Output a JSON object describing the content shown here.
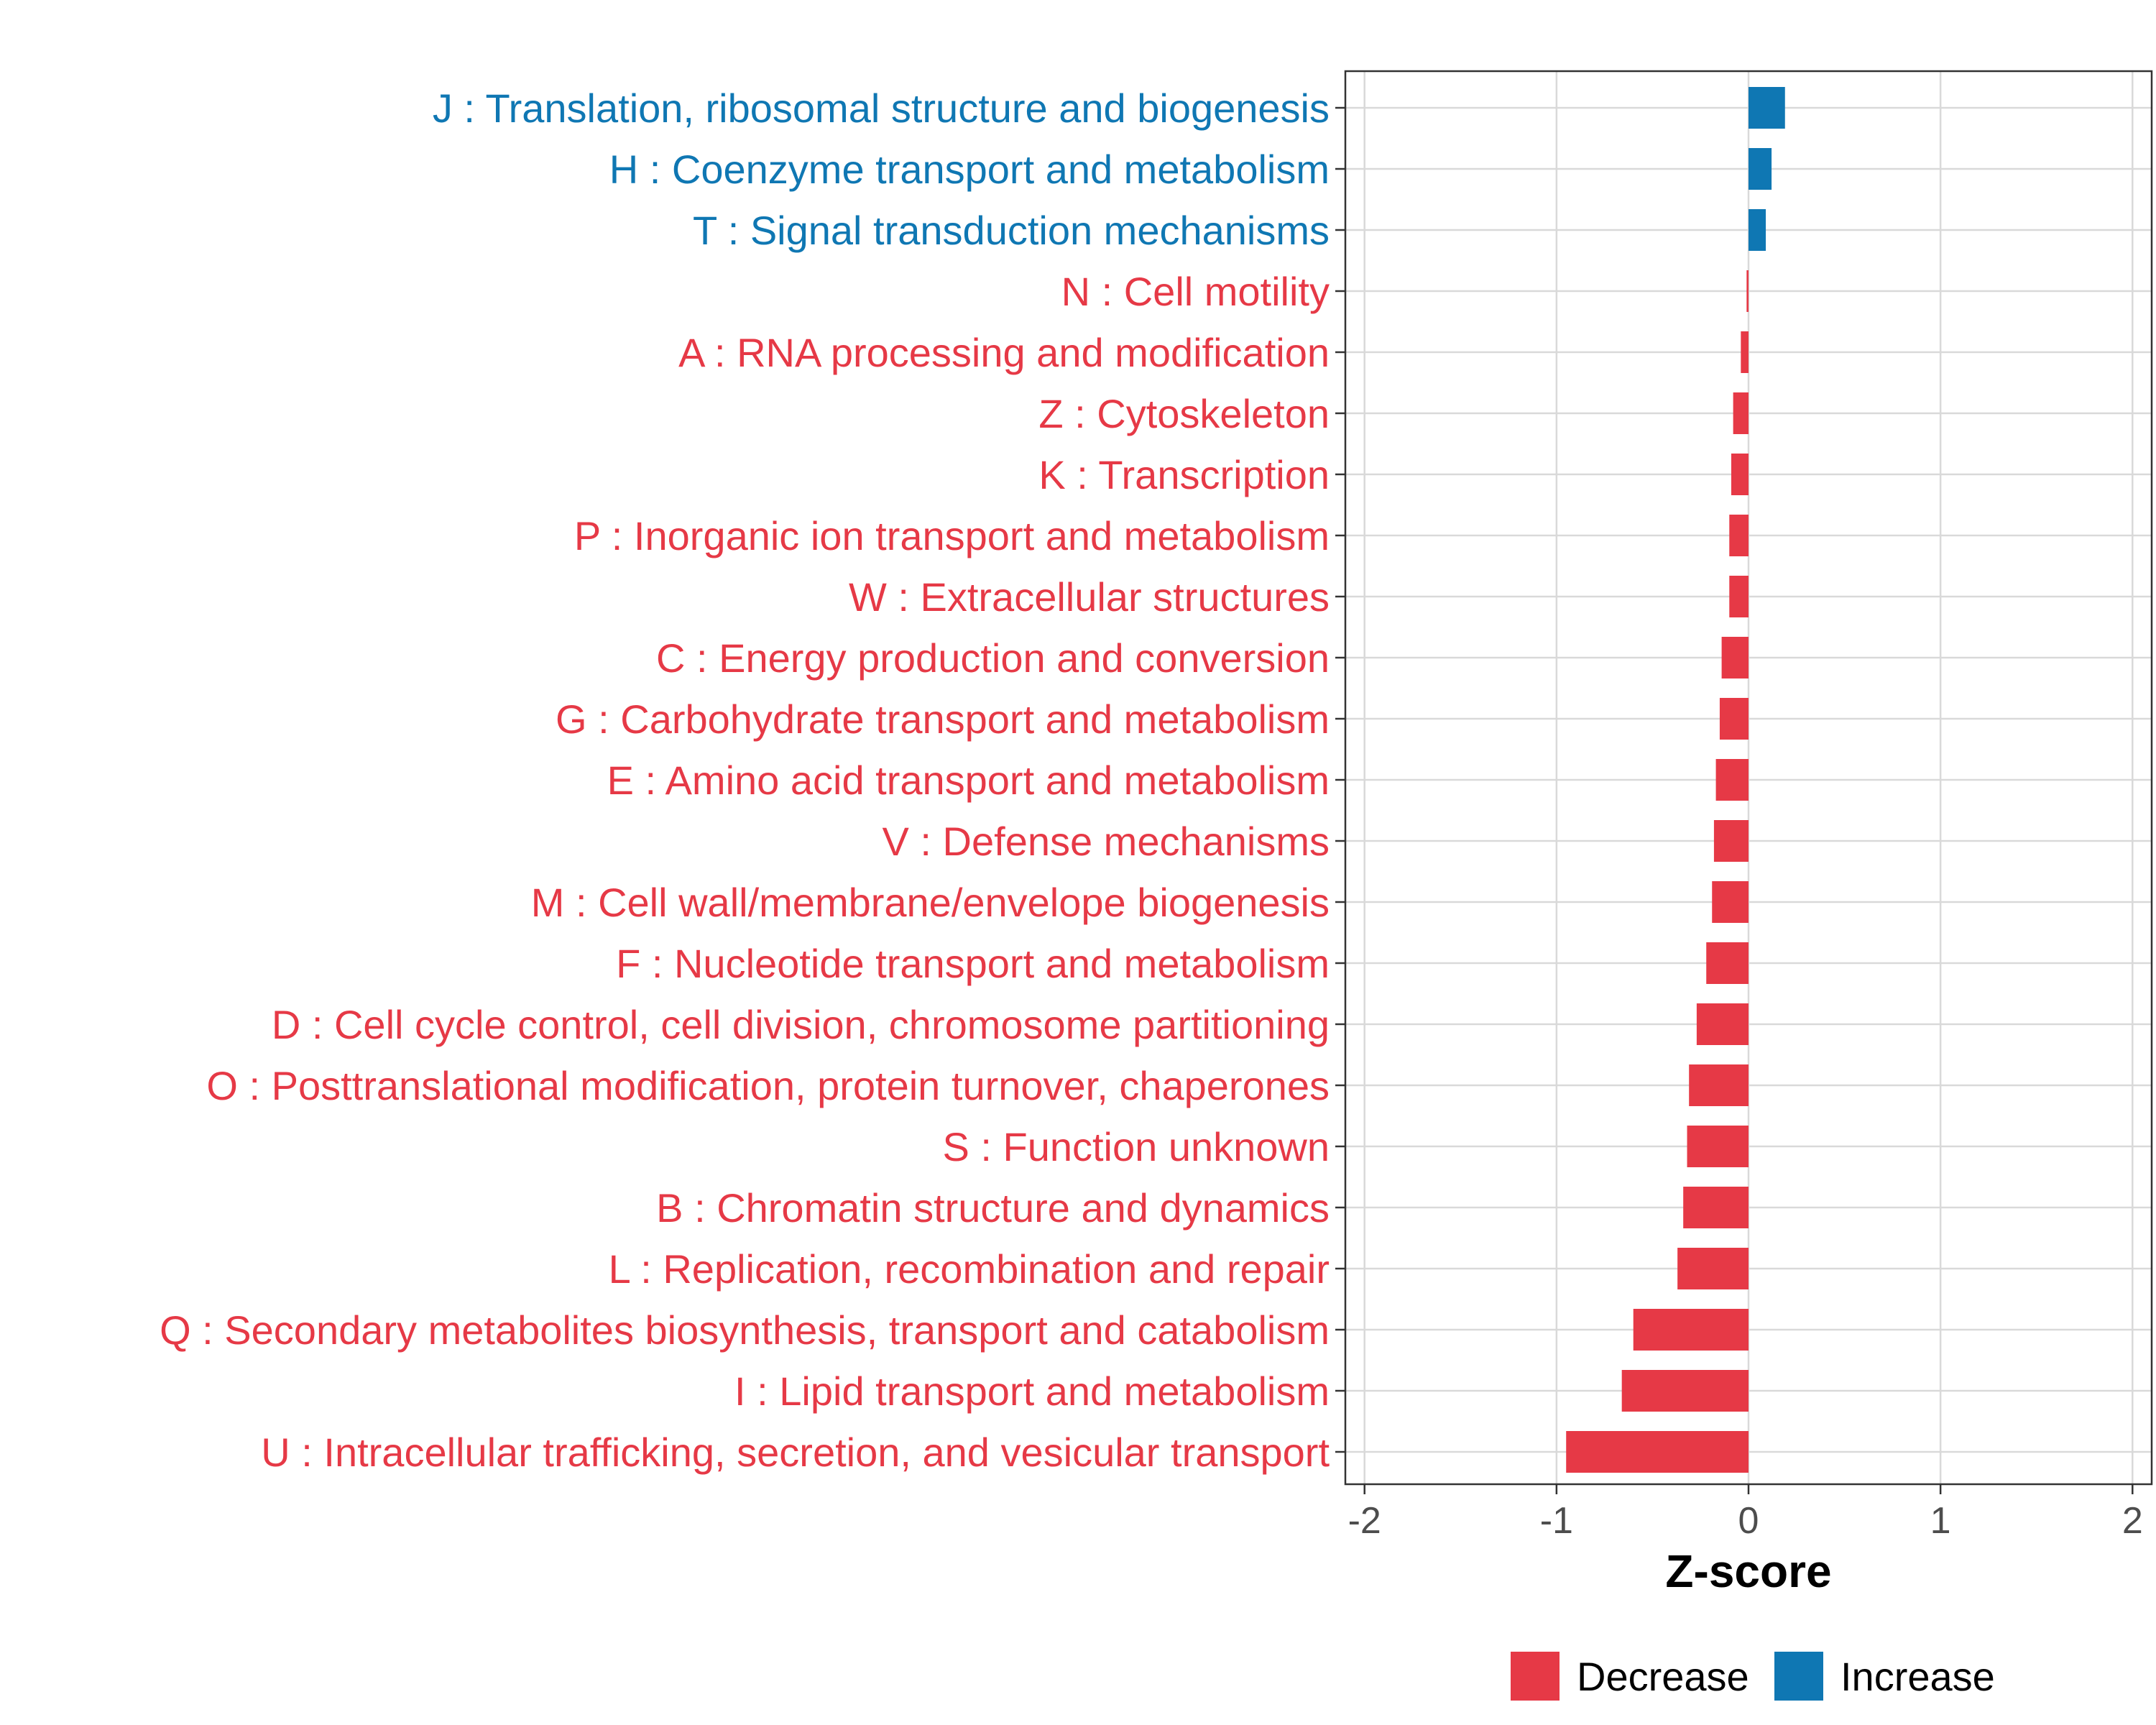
{
  "chart_data": {
    "type": "bar",
    "orientation": "horizontal",
    "title": "",
    "xlabel": "Z-score",
    "ylabel": "",
    "xlim": [
      -2.1,
      2.1
    ],
    "xticks": [
      -2,
      -1,
      0,
      1,
      2
    ],
    "xtick_labels": [
      "-2",
      "-1",
      "0",
      "1",
      "2"
    ],
    "grid": true,
    "legend_position": "bottom",
    "colors": {
      "Decrease": "#E63946",
      "Increase": "#0F77B3"
    },
    "legend": [
      {
        "label": "Decrease",
        "color": "#E63946"
      },
      {
        "label": "Increase",
        "color": "#0F77B3"
      }
    ],
    "categories": [
      "J : Translation, ribosomal structure and biogenesis",
      "H : Coenzyme transport and metabolism",
      "T : Signal transduction mechanisms",
      "N : Cell motility",
      "A : RNA processing and modification",
      "Z : Cytoskeleton",
      "K : Transcription",
      "P : Inorganic ion transport and metabolism",
      "W : Extracellular structures",
      "C : Energy production and conversion",
      "G : Carbohydrate transport and metabolism",
      "E : Amino acid transport and metabolism",
      "V : Defense mechanisms",
      "M : Cell wall/membrane/envelope biogenesis",
      "F : Nucleotide transport and metabolism",
      "D : Cell cycle control, cell division, chromosome partitioning",
      "O : Posttranslational modification, protein turnover, chaperones",
      "S : Function unknown",
      "B : Chromatin structure and dynamics",
      "L : Replication, recombination and repair",
      "Q : Secondary metabolites biosynthesis, transport and catabolism",
      "I : Lipid transport and metabolism",
      "U : Intracellular trafficking, secretion, and vesicular transport"
    ],
    "values": [
      0.19,
      0.12,
      0.09,
      -0.01,
      -0.04,
      -0.08,
      -0.09,
      -0.1,
      -0.1,
      -0.14,
      -0.15,
      -0.17,
      -0.18,
      -0.19,
      -0.22,
      -0.27,
      -0.31,
      -0.32,
      -0.34,
      -0.37,
      -0.6,
      -0.66,
      -0.95
    ],
    "groups": [
      "Increase",
      "Increase",
      "Increase",
      "Decrease",
      "Decrease",
      "Decrease",
      "Decrease",
      "Decrease",
      "Decrease",
      "Decrease",
      "Decrease",
      "Decrease",
      "Decrease",
      "Decrease",
      "Decrease",
      "Decrease",
      "Decrease",
      "Decrease",
      "Decrease",
      "Decrease",
      "Decrease",
      "Decrease",
      "Decrease"
    ]
  }
}
